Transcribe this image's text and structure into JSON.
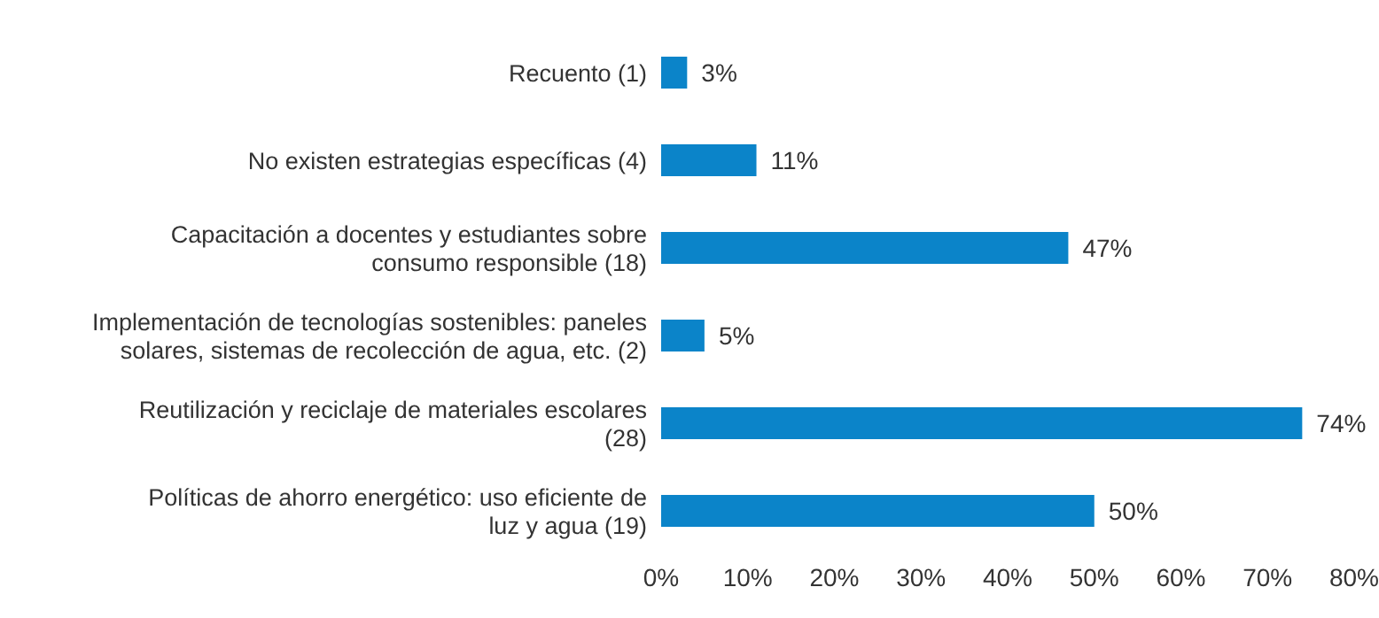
{
  "chart_data": {
    "type": "bar",
    "orientation": "horizontal",
    "categories": [
      "Recuento (1)",
      "No existen estrategias específicas (4)",
      "Capacitación a docentes y estudiantes sobre consumo responsible (18)",
      "Implementación de tecnologías sostenibles: paneles solares, sistemas de recolección de agua, etc. (2)",
      "Reutilización y reciclaje de materiales escolares (28)",
      "Políticas de ahorro energético: uso eficiente de luz y agua (19)"
    ],
    "values": [
      3,
      11,
      47,
      5,
      74,
      50
    ],
    "value_labels": [
      "3%",
      "11%",
      "47%",
      "5%",
      "74%",
      "50%"
    ],
    "color": "#0b84c9",
    "xlim": [
      0,
      80
    ],
    "xticks": [
      {
        "value": 0,
        "label": "0%"
      },
      {
        "value": 10,
        "label": "10%"
      },
      {
        "value": 20,
        "label": "20%"
      },
      {
        "value": 30,
        "label": "30%"
      },
      {
        "value": 40,
        "label": "40%"
      },
      {
        "value": 50,
        "label": "50%"
      },
      {
        "value": 60,
        "label": "60%"
      },
      {
        "value": 70,
        "label": "70%"
      },
      {
        "value": 80,
        "label": "80%"
      }
    ],
    "grid": false,
    "legend": false
  }
}
